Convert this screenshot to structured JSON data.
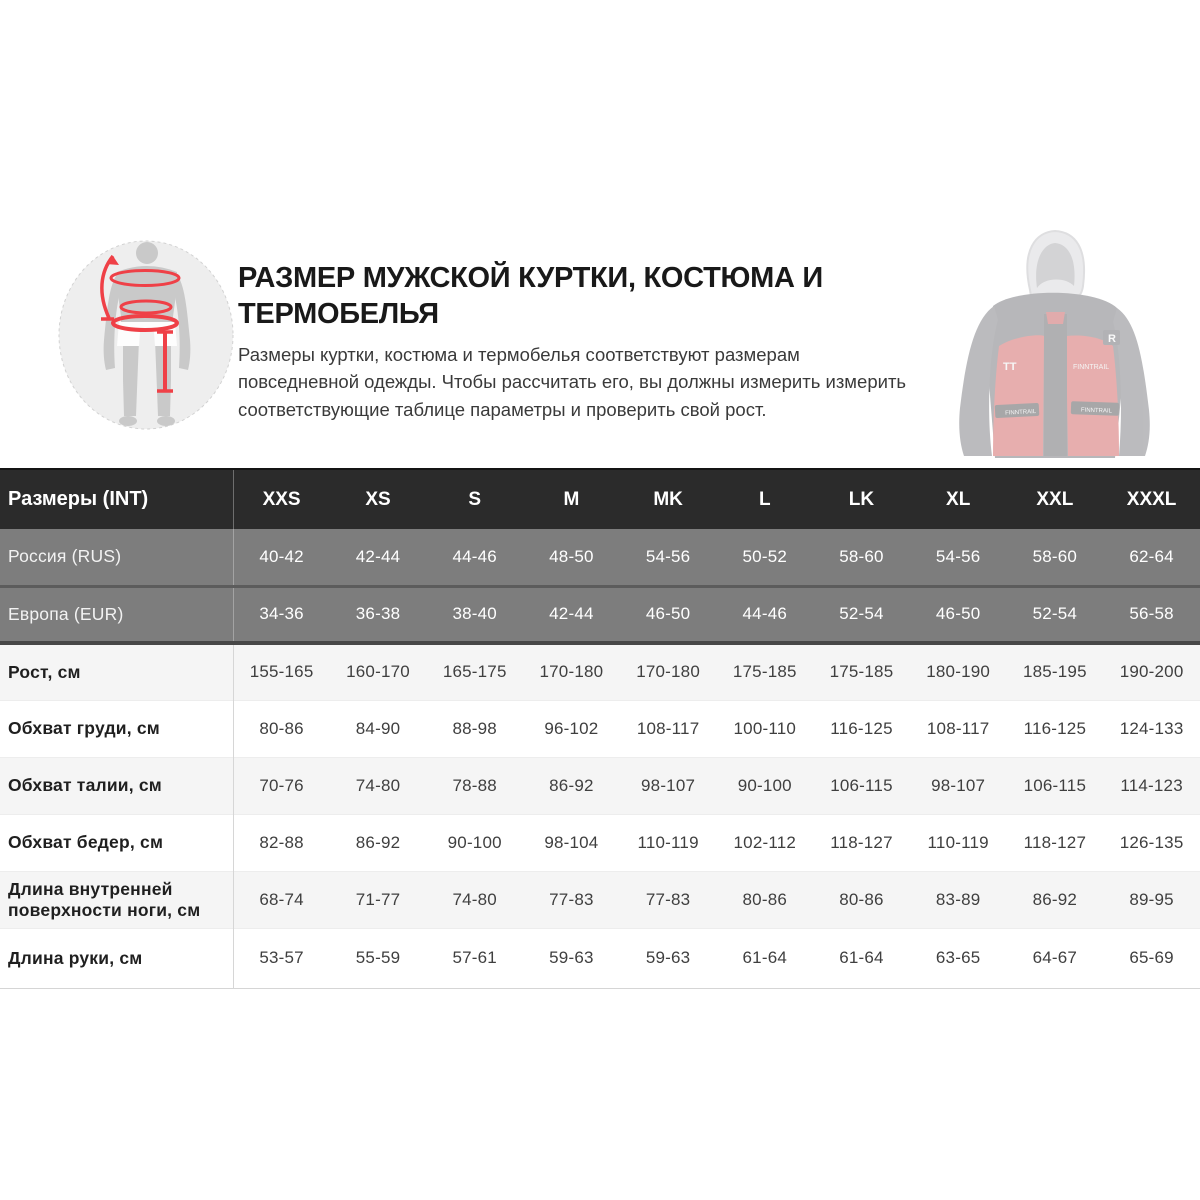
{
  "header": {
    "title": "Размер мужской куртки, костюма и термобелья",
    "description": "Размеры куртки, костюма и термобелья соответствуют размерам повседневной одежды. Чтобы рассчитать его, вы должны измерить измерить соответствующие таблице параметры и проверить свой рост."
  },
  "illustration": {
    "name": "body-measurement-figure",
    "accent_color": "#ef4047",
    "silhouette_color": "#c9c9c9",
    "circle_color": "#eeeeee"
  },
  "jacket_image": {
    "name": "jacket-photo",
    "primary_color": "#c8403f",
    "secondary_color": "#56565c",
    "brand_marks": [
      "TT",
      "FINNTRAIL",
      "R"
    ]
  },
  "colors": {
    "table_header_bg": "#2b2b2b",
    "shaded_row_bg": "#7d7d7d",
    "alt_row_bg": "#f5f5f5"
  },
  "table": {
    "header": {
      "label": "Размеры (INT)",
      "columns": [
        "XXS",
        "XS",
        "S",
        "M",
        "MK",
        "L",
        "LK",
        "XL",
        "XXL",
        "XXXL"
      ]
    },
    "rows": [
      {
        "label": "Россия (RUS)",
        "shaded": true,
        "values": [
          "40-42",
          "42-44",
          "44-46",
          "48-50",
          "54-56",
          "50-52",
          "58-60",
          "54-56",
          "58-60",
          "62-64"
        ]
      },
      {
        "label": "Европа (EUR)",
        "shaded": true,
        "values": [
          "34-36",
          "36-38",
          "38-40",
          "42-44",
          "46-50",
          "44-46",
          "52-54",
          "46-50",
          "52-54",
          "56-58"
        ]
      },
      {
        "label": "Рост, см",
        "shaded": false,
        "values": [
          "155-165",
          "160-170",
          "165-175",
          "170-180",
          "170-180",
          "175-185",
          "175-185",
          "180-190",
          "185-195",
          "190-200"
        ]
      },
      {
        "label": "Обхват груди, см",
        "shaded": false,
        "values": [
          "80-86",
          "84-90",
          "88-98",
          "96-102",
          "108-117",
          "100-110",
          "116-125",
          "108-117",
          "116-125",
          "124-133"
        ]
      },
      {
        "label": "Обхват талии, см",
        "shaded": false,
        "values": [
          "70-76",
          "74-80",
          "78-88",
          "86-92",
          "98-107",
          "90-100",
          "106-115",
          "98-107",
          "106-115",
          "114-123"
        ]
      },
      {
        "label": "Обхват бедер, см",
        "shaded": false,
        "values": [
          "82-88",
          "86-92",
          "90-100",
          "98-104",
          "110-119",
          "102-112",
          "118-127",
          "110-119",
          "118-127",
          "126-135"
        ]
      },
      {
        "label": "Длина внутренней поверхности ноги, см",
        "shaded": false,
        "values": [
          "68-74",
          "71-77",
          "74-80",
          "77-83",
          "77-83",
          "80-86",
          "80-86",
          "83-89",
          "86-92",
          "89-95"
        ]
      },
      {
        "label": "Длина руки, см",
        "shaded": false,
        "values": [
          "53-57",
          "55-59",
          "57-61",
          "59-63",
          "59-63",
          "61-64",
          "61-64",
          "63-65",
          "64-67",
          "65-69"
        ]
      }
    ]
  }
}
